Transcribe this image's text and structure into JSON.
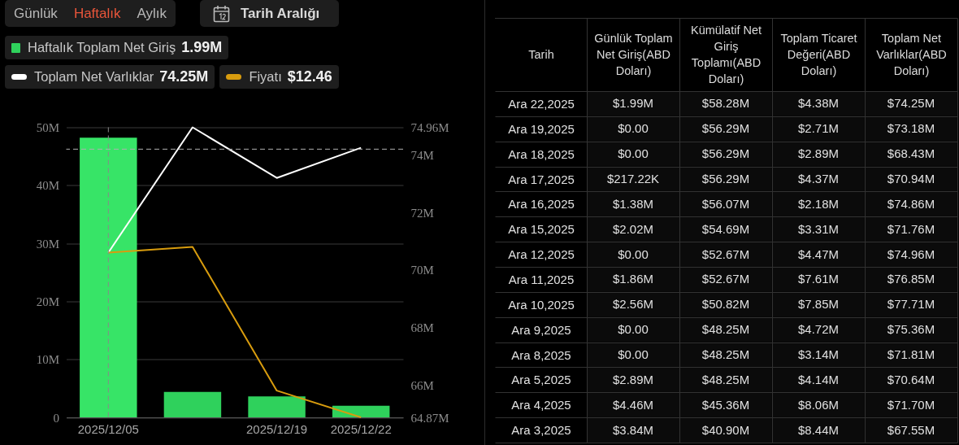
{
  "chart_data": [
    {
      "type": "bar",
      "categories": [
        "2025/12/05",
        null,
        "2025/12/19",
        "2025/12/22"
      ],
      "series": [
        {
          "name": "Haftalık Toplam Net Giriş",
          "type": "bar",
          "color": "#2fd15c",
          "colors": [
            "#37e467",
            "#2fd15c",
            "#2fd15c",
            "#2fd15c"
          ],
          "values": [
            48.2,
            4.4,
            3.6,
            1.99
          ]
        },
        {
          "name": "Toplam Net Varlıklar",
          "type": "line",
          "axis": "y2",
          "color": "#ffffff",
          "values": [
            70.6,
            74.96,
            73.2,
            74.25
          ]
        },
        {
          "name": "Fiyatı",
          "type": "line",
          "axis": "y2",
          "color": "#d89c0e",
          "values": [
            70.6,
            70.8,
            65.8,
            64.87
          ]
        }
      ],
      "ylim": [
        0,
        50
      ],
      "yticks": [
        0,
        {
          "value": 10,
          "label": "10M"
        },
        {
          "value": 20,
          "label": "20M"
        },
        {
          "value": 30,
          "label": "30M"
        },
        {
          "value": 40,
          "label": "40M"
        },
        {
          "value": 50,
          "label": "50M"
        }
      ],
      "y2lim": [
        64.87,
        74.96
      ],
      "y2ticks": [
        {
          "value": 64.87,
          "label": "64.87M"
        },
        {
          "value": 66,
          "label": "66M"
        },
        {
          "value": 68,
          "label": "68M"
        },
        {
          "value": 70,
          "label": "70M"
        },
        {
          "value": 72,
          "label": "72M"
        },
        {
          "value": 74,
          "label": "74M"
        },
        {
          "value": 74.96,
          "label": "74.96M"
        }
      ],
      "grid": "y",
      "legend": "top left",
      "ref_lines": [
        {
          "axis": "x",
          "value": "2025/12/05",
          "line_style": "dashed",
          "color": "#8a8a8a"
        },
        {
          "axis": "y2",
          "value": 74.2,
          "line_style": "dashed",
          "color": "#b0b0b0"
        }
      ],
      "annotations": [
        "Günlük",
        "Haftalık",
        "Aylık",
        "Tarih Aralığı",
        "1.99M",
        "74.25M",
        "$12.46"
      ]
    },
    {
      "type": "other",
      "ylabel": "Tarih",
      "categories": [
        "Günlük Toplam Net Giriş(ABD Doları)",
        "Kümülatif Net Giriş Toplamı(ABD Doları)",
        "Toplam Ticaret Değeri(ABD Doları)",
        "Toplam Net Varlıklar(ABD Doları)"
      ],
      "y_categories": [
        "Ara 22,2025",
        "Ara 19,2025",
        "Ara 18,2025",
        "Ara 17,2025",
        "Ara 16,2025",
        "Ara 15,2025",
        "Ara 12,2025",
        "Ara 11,2025",
        "Ara 10,2025",
        "Ara 9,2025",
        "Ara 8,2025",
        "Ara 5,2025",
        "Ara 4,2025",
        "Ara 3,2025"
      ],
      "cell_labels": [
        [
          "$1.99M",
          "$58.28M",
          "$4.38M",
          "$74.25M"
        ],
        [
          "$0.00",
          "$56.29M",
          "$2.71M",
          "$73.18M"
        ],
        [
          "$0.00",
          "$56.29M",
          "$2.89M",
          "$68.43M"
        ],
        [
          "$217.22K",
          "$56.29M",
          "$4.37M",
          "$70.94M"
        ],
        [
          "$1.38M",
          "$56.07M",
          "$2.18M",
          "$74.86M"
        ],
        [
          "$2.02M",
          "$54.69M",
          "$3.31M",
          "$71.76M"
        ],
        [
          "$0.00",
          "$52.67M",
          "$4.47M",
          "$74.96M"
        ],
        [
          "$1.86M",
          "$52.67M",
          "$7.61M",
          "$76.85M"
        ],
        [
          "$2.56M",
          "$50.82M",
          "$7.85M",
          "$77.71M"
        ],
        [
          "$0.00",
          "$48.25M",
          "$4.72M",
          "$75.36M"
        ],
        [
          "$0.00",
          "$48.25M",
          "$3.14M",
          "$71.81M"
        ],
        [
          "$2.89M",
          "$48.25M",
          "$4.14M",
          "$70.64M"
        ],
        [
          "$4.46M",
          "$45.36M",
          "$8.06M",
          "$71.70M"
        ],
        [
          "$3.84M",
          "$40.90M",
          "$8.44M",
          "$67.55M"
        ]
      ]
    }
  ]
}
